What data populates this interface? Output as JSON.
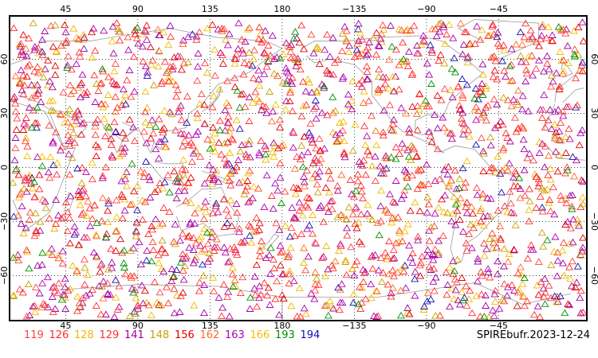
{
  "map": {
    "lon_ticks_top": [
      "45",
      "90",
      "135",
      "180",
      "−135",
      "−90",
      "−45"
    ],
    "lon_ticks_bottom": [
      "45",
      "90",
      "135",
      "180",
      "−135",
      "−90",
      "−45"
    ],
    "lat_ticks_left": [
      "60",
      "30",
      "0",
      "−30",
      "−60"
    ],
    "lat_ticks_right": [
      "60",
      "30",
      "0",
      "−30",
      "−60"
    ],
    "marker": "open-triangle",
    "land_outline_color": "#9a9a9a",
    "grid": "dotted",
    "frame_color": "#000000"
  },
  "legend": {
    "items": [
      {
        "label": "119",
        "color": "#ff4040"
      },
      {
        "label": "126",
        "color": "#ff2a2a"
      },
      {
        "label": "128",
        "color": "#f0b800"
      },
      {
        "label": "129",
        "color": "#ff3030"
      },
      {
        "label": "141",
        "color": "#a000a0"
      },
      {
        "label": "148",
        "color": "#c8a000"
      },
      {
        "label": "156",
        "color": "#e00000"
      },
      {
        "label": "162",
        "color": "#ff6a2a"
      },
      {
        "label": "163",
        "color": "#b000b0"
      },
      {
        "label": "166",
        "color": "#f0c000"
      },
      {
        "label": "193",
        "color": "#009000"
      },
      {
        "label": "194",
        "color": "#1010b0"
      }
    ],
    "title": "SPIREbufr.2023-12-24"
  }
}
